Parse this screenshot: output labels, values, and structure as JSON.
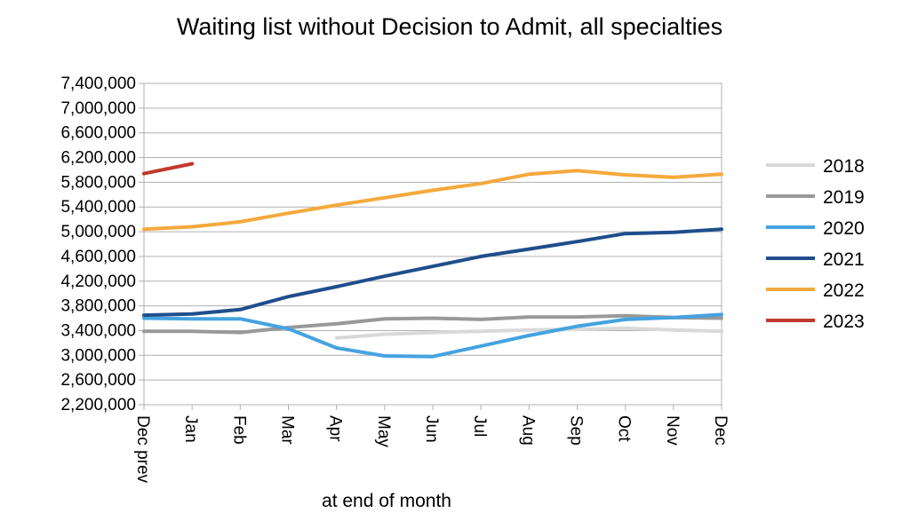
{
  "chart_data": {
    "type": "line",
    "title": "Waiting list without Decision to Admit, all specialties",
    "xlabel": "at end of month",
    "ylabel": "",
    "categories": [
      "Dec prev",
      "Jan",
      "Feb",
      "Mar",
      "Apr",
      "May",
      "Jun",
      "Jul",
      "Aug",
      "Sep",
      "Oct",
      "Nov",
      "Dec"
    ],
    "y_tick_labels": [
      "2,200,000",
      "2,600,000",
      "3,000,000",
      "3,400,000",
      "3,800,000",
      "4,200,000",
      "4,600,000",
      "5,000,000",
      "5,400,000",
      "5,800,000",
      "6,200,000",
      "6,600,000",
      "7,000,000",
      "7,400,000"
    ],
    "ylim": [
      2200000,
      7400000
    ],
    "grid": true,
    "legend_position": "right",
    "series": [
      {
        "name": "2018",
        "color": "#d9d9d9",
        "values": [
          null,
          null,
          null,
          null,
          3280000,
          3340000,
          3370000,
          3390000,
          3410000,
          3420000,
          3440000,
          3410000,
          3390000
        ]
      },
      {
        "name": "2019",
        "color": "#999999",
        "values": [
          3390000,
          3390000,
          3370000,
          3450000,
          3510000,
          3590000,
          3600000,
          3580000,
          3620000,
          3620000,
          3640000,
          3610000,
          3600000
        ]
      },
      {
        "name": "2020",
        "color": "#45a3e0",
        "values": [
          3600000,
          3590000,
          3590000,
          3430000,
          3120000,
          2990000,
          2980000,
          3150000,
          3320000,
          3470000,
          3580000,
          3610000,
          3660000
        ]
      },
      {
        "name": "2021",
        "color": "#1f4e8c",
        "values": [
          3650000,
          3670000,
          3740000,
          3950000,
          4110000,
          4280000,
          4440000,
          4600000,
          4720000,
          4840000,
          4970000,
          4990000,
          5040000
        ]
      },
      {
        "name": "2022",
        "color": "#f4a93c",
        "values": [
          5040000,
          5080000,
          5160000,
          5300000,
          5430000,
          5550000,
          5670000,
          5780000,
          5930000,
          5990000,
          5920000,
          5880000,
          5930000
        ]
      },
      {
        "name": "2023",
        "color": "#c0392b",
        "values": [
          5940000,
          6100000,
          null,
          null,
          null,
          null,
          null,
          null,
          null,
          null,
          null,
          null,
          null
        ]
      }
    ]
  }
}
